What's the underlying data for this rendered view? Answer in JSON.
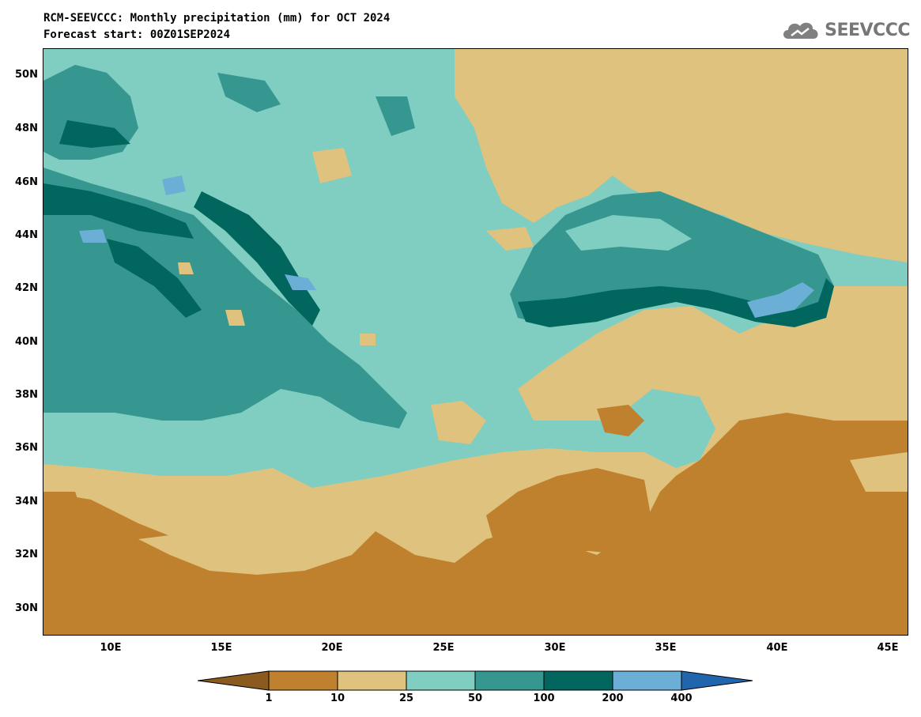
{
  "title_line1": "RCM-SEEVCCC: Monthly precipitation (mm) for OCT 2024",
  "title_line2": "Forecast start: 00Z01SEP2024",
  "logo_text": "SEEVCCC",
  "lat_labels": [
    "50N",
    "48N",
    "46N",
    "44N",
    "42N",
    "40N",
    "38N",
    "36N",
    "34N",
    "32N",
    "30N"
  ],
  "lon_labels": [
    "10E",
    "15E",
    "20E",
    "25E",
    "30E",
    "35E",
    "40E",
    "45E"
  ],
  "legend": {
    "ticks": [
      "1",
      "10",
      "25",
      "50",
      "100",
      "200",
      "400"
    ],
    "colors": [
      "#8b5a1e",
      "#bf812d",
      "#dfc27d",
      "#80cdc1",
      "#35978f",
      "#01665e",
      "#6baed6",
      "#2166ac"
    ]
  }
}
